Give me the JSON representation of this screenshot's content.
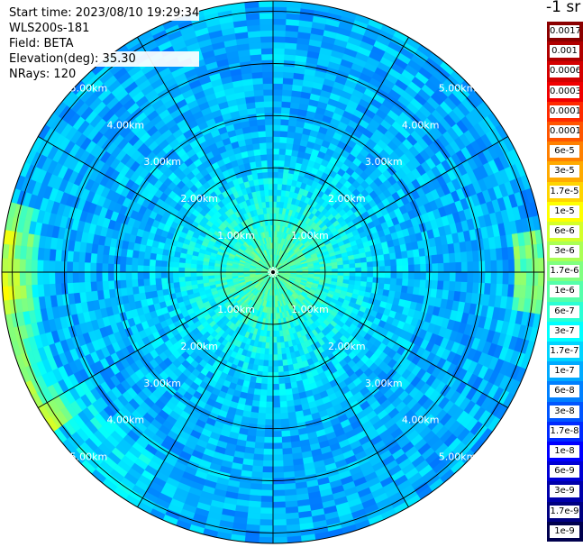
{
  "header": {
    "start_time": "Start time: 2023/08/10 19:29:34",
    "instrument": "WLS200s-181",
    "field": "Field: BETA",
    "elevation": "Elevation(deg): 35.30",
    "nrays": "NRays: 120"
  },
  "colorbar": {
    "units": "-1 sr",
    "entries": [
      {
        "label": "0.0017",
        "color": "#8b0000"
      },
      {
        "label": "0.001",
        "color": "#b00000"
      },
      {
        "label": "0.0006",
        "color": "#d40000"
      },
      {
        "label": "0.0003",
        "color": "#f00000"
      },
      {
        "label": "0.00017",
        "color": "#ff2a00"
      },
      {
        "label": "0.0001",
        "color": "#ff5500"
      },
      {
        "label": "6e-5",
        "color": "#ff8000"
      },
      {
        "label": "3e-5",
        "color": "#ffaa00"
      },
      {
        "label": "1.7e-5",
        "color": "#ffd400"
      },
      {
        "label": "1e-5",
        "color": "#ffff00"
      },
      {
        "label": "6e-6",
        "color": "#d4ff2a"
      },
      {
        "label": "3e-6",
        "color": "#aaff55"
      },
      {
        "label": "1.7e-6",
        "color": "#80ff80"
      },
      {
        "label": "1e-6",
        "color": "#55ffaa"
      },
      {
        "label": "6e-7",
        "color": "#2affd4"
      },
      {
        "label": "3e-7",
        "color": "#00ffff"
      },
      {
        "label": "1.7e-7",
        "color": "#00d4ff"
      },
      {
        "label": "1e-7",
        "color": "#00aaff"
      },
      {
        "label": "6e-8",
        "color": "#0080ff"
      },
      {
        "label": "3e-8",
        "color": "#0055ff"
      },
      {
        "label": "1.7e-8",
        "color": "#002aff"
      },
      {
        "label": "1e-8",
        "color": "#0000ff"
      },
      {
        "label": "6e-9",
        "color": "#0000d4"
      },
      {
        "label": "3e-9",
        "color": "#0000aa"
      },
      {
        "label": "1.7e-9",
        "color": "#000080"
      },
      {
        "label": "1e-9",
        "color": "#00004d"
      }
    ]
  },
  "chart_data": {
    "type": "heatmap",
    "projection": "polar (PPI scan)",
    "field": "BETA",
    "units": "-1 sr",
    "elevation_deg": 35.3,
    "nrays": 120,
    "range_max_km": 5.2,
    "range_rings_km": [
      1,
      2,
      3,
      4,
      5
    ],
    "ring_labels": [
      "1.00km",
      "2.00km",
      "3.00km",
      "4.00km",
      "5.00km"
    ],
    "spoke_angles_deg": [
      0,
      30,
      60,
      90,
      120,
      150,
      180,
      210,
      240,
      270,
      300,
      330
    ],
    "approximate_values_by_range": [
      {
        "range_km": 0.5,
        "value": "3e-7"
      },
      {
        "range_km": 1.0,
        "value": "1.7e-7"
      },
      {
        "range_km": 2.0,
        "value": "1e-7"
      },
      {
        "range_km": 3.0,
        "value": "6e-8"
      },
      {
        "range_km": 4.0,
        "value": "6e-8"
      },
      {
        "range_km": 5.0,
        "value": "6e-8"
      }
    ],
    "notable_features": [
      {
        "region": "west edge (≈230°–290°), 4.5–5.2 km",
        "value": "1.7e-6"
      },
      {
        "region": "east edge (≈75°–95°), ~5.1 km",
        "value": "1.7e-6"
      }
    ],
    "colorbar_range": [
      "1e-9",
      "0.0017"
    ]
  }
}
